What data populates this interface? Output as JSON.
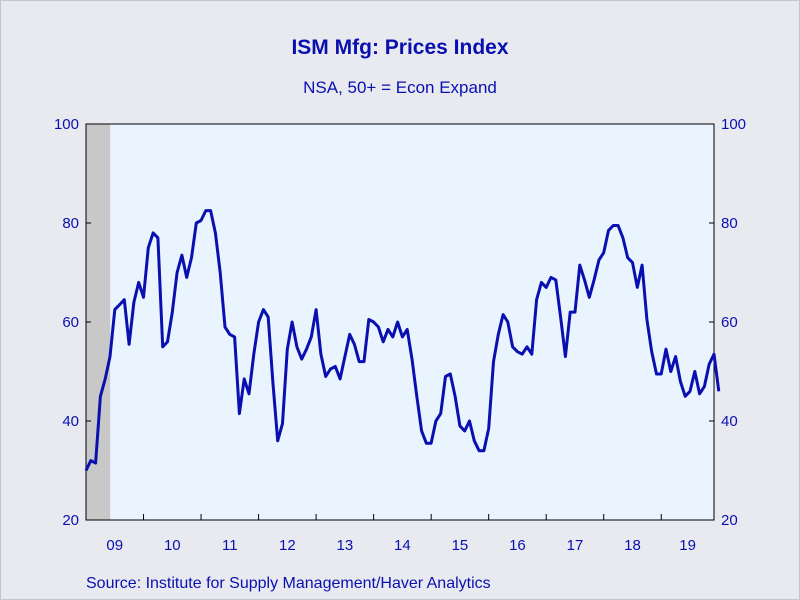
{
  "chart_data": {
    "type": "line",
    "title": "ISM Mfg: Prices Index",
    "subtitle": "NSA, 50+ = Econ Expand",
    "source": "Source:  Institute for Supply Management/Haver Analytics",
    "ylim": [
      20,
      100
    ],
    "yticks": [
      "20",
      "40",
      "60",
      "80",
      "100"
    ],
    "xlim": [
      2009.0,
      2019.917
    ],
    "x_tick_labels": [
      "09",
      "10",
      "11",
      "12",
      "13",
      "14",
      "15",
      "16",
      "17",
      "18",
      "19"
    ],
    "recession_band": [
      2009.0,
      2009.42
    ],
    "colors": {
      "line": "#0a10b0",
      "plot_bg": "#eaf4ff",
      "recession": "#c8c8c8",
      "page_bg": "#e8eaf0"
    },
    "series": [
      {
        "start": "2009-01",
        "values": [
          30,
          32,
          31.5,
          45,
          48.5,
          53,
          62.5,
          63.5,
          64.5,
          55.5,
          64,
          68,
          65,
          75,
          78,
          77,
          55,
          56,
          62,
          70,
          73.5,
          69,
          73,
          80,
          80.5,
          82.5,
          82.5,
          78,
          70,
          59,
          57.5,
          57,
          41.5,
          48.5,
          45.5,
          53.5,
          60,
          62.5,
          61,
          47.5,
          36,
          39.5,
          54.5,
          60,
          55,
          52.5,
          54.5,
          57,
          62.5,
          53.5,
          49,
          50.5,
          51,
          48.5,
          53,
          57.5,
          55.5,
          52,
          52,
          60.5,
          60,
          59,
          56,
          58.5,
          57,
          60,
          57,
          58.5,
          52.5,
          45,
          38,
          35.5,
          35.5,
          40,
          41.5,
          49,
          49.5,
          45,
          39,
          38,
          40,
          36,
          34,
          34,
          38.5,
          52,
          57.5,
          61.5,
          60,
          55,
          54,
          53.5,
          55,
          53.5,
          64.5,
          68,
          67,
          69,
          68.5,
          61,
          53,
          62,
          62,
          71.5,
          68.5,
          65,
          68.5,
          72.5,
          74,
          78.5,
          79.5,
          79.5,
          77,
          73,
          72,
          67,
          71.5,
          60.5,
          54,
          49.5,
          49.5,
          54.5,
          50,
          53,
          48,
          45,
          46,
          50,
          45.5,
          47,
          51.5,
          53.5,
          46
        ]
      }
    ]
  }
}
